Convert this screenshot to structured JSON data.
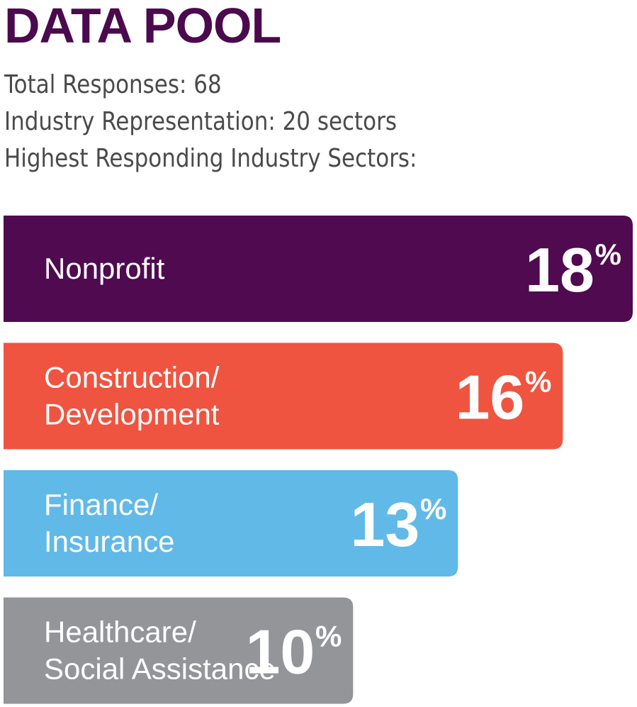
{
  "header": {
    "title": "DATA POOL",
    "title_color": "#4b0a4e"
  },
  "stats": {
    "total_responses": "Total Responses: 68",
    "industry_representation": "Industry Representation: 20 sectors",
    "highest_sectors": "Highest Responding Industry Sectors:"
  },
  "chart_data": {
    "type": "bar",
    "orientation": "horizontal",
    "title": "Highest Responding Industry Sectors",
    "categories": [
      [
        "Nonprofit"
      ],
      [
        "Construction/",
        "Development"
      ],
      [
        "Finance/",
        "Insurance"
      ],
      [
        "Healthcare/",
        "Social Assistance"
      ]
    ],
    "values": [
      18,
      16,
      13,
      10
    ],
    "value_suffix": "%",
    "colors": [
      "#4f0a50",
      "#ef5440",
      "#61b9e8",
      "#939598"
    ],
    "xlim": [
      0,
      18
    ]
  }
}
